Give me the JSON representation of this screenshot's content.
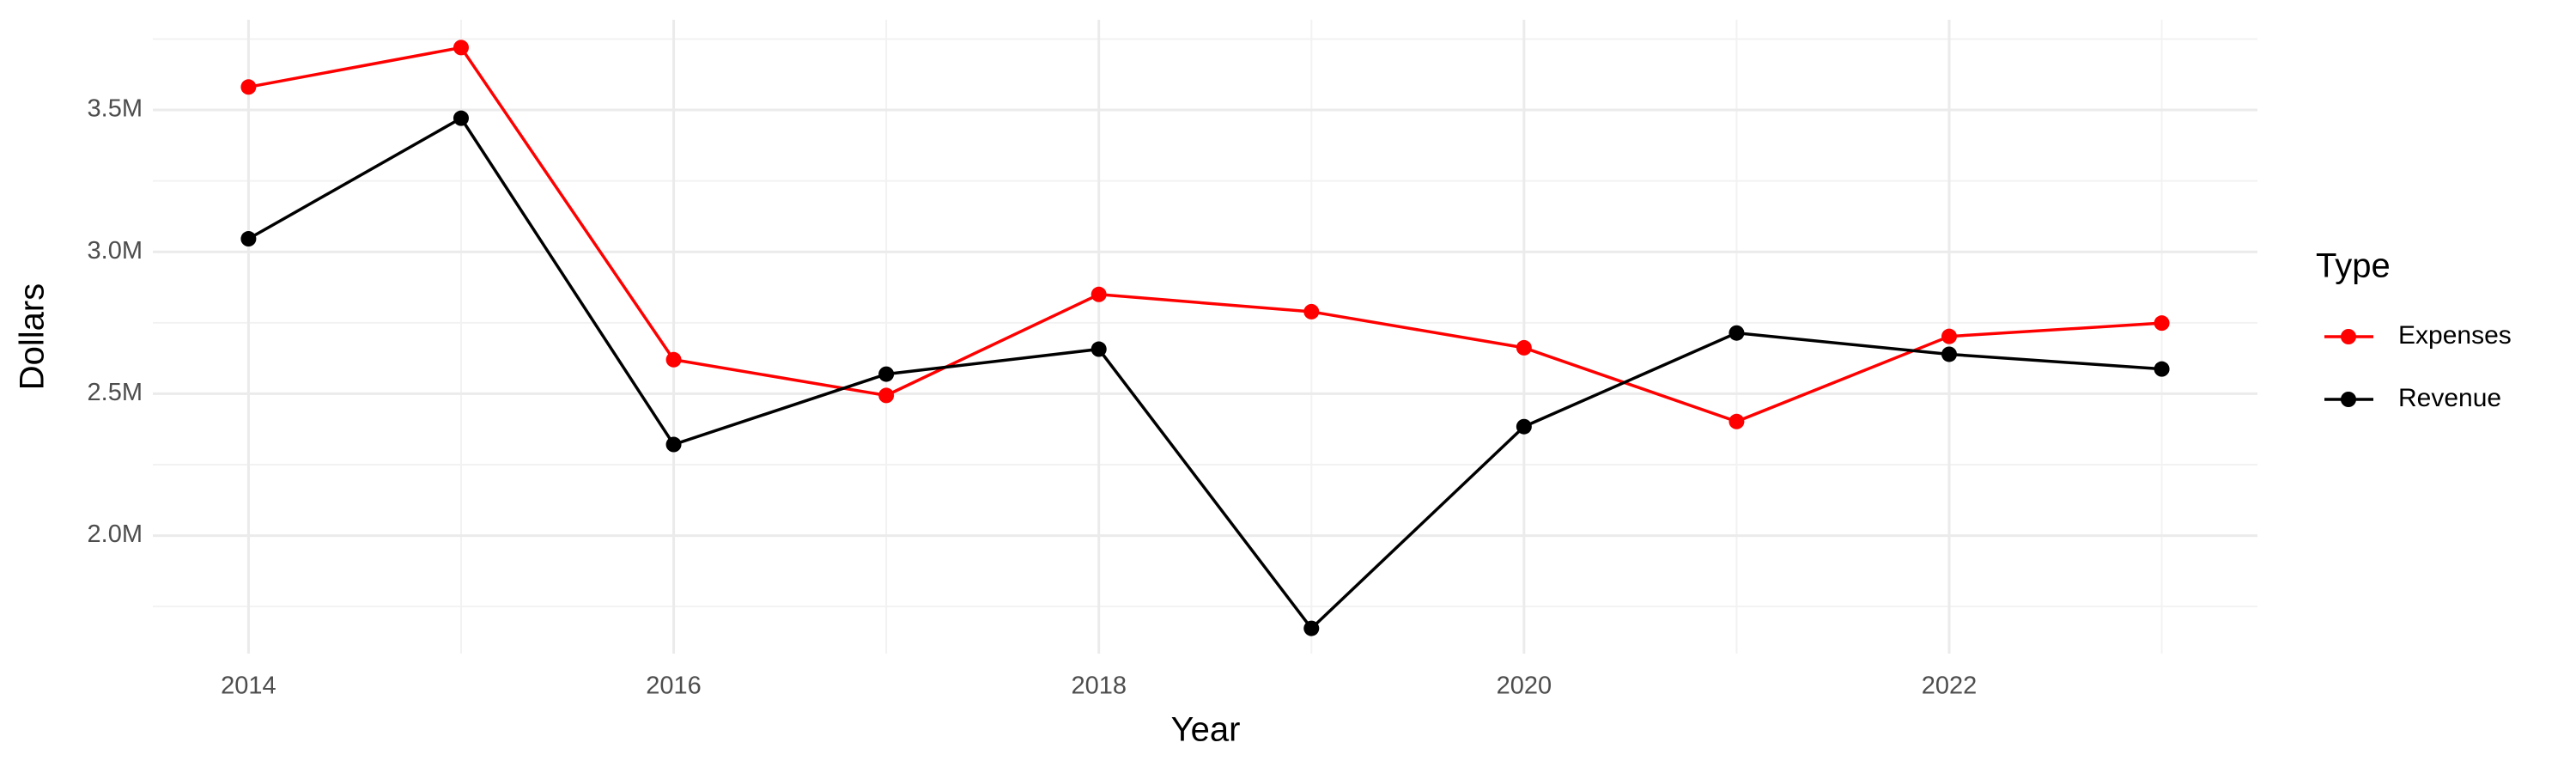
{
  "chart_data": {
    "type": "line",
    "x_label": "Year",
    "y_label": "Dollars",
    "legend_title": "Type",
    "legend": "right",
    "grid": true,
    "x": [
      2014,
      2015,
      2016,
      2017,
      2018,
      2019,
      2020,
      2021,
      2022,
      2023
    ],
    "series": [
      {
        "name": "Expenses",
        "color": "#ff0000",
        "values": [
          3581000,
          3720000,
          2620000,
          2494000,
          2850000,
          2789000,
          2662000,
          2402000,
          2702000,
          2749000
        ]
      },
      {
        "name": "Revenue",
        "color": "#000000",
        "values": [
          3046000,
          3471000,
          2321000,
          2569000,
          2657000,
          1673000,
          2384000,
          2714000,
          2639000,
          2587000
        ]
      }
    ],
    "xlim": [
      2013.55,
      2023.45
    ],
    "xticks": [
      2014,
      2016,
      2018,
      2020,
      2022
    ],
    "ylim": [
      1584000,
      3818000
    ],
    "yticks": [
      {
        "value": 2000000,
        "label": "2.0M"
      },
      {
        "value": 2500000,
        "label": "2.5M"
      },
      {
        "value": 3000000,
        "label": "3.0M"
      },
      {
        "value": 3500000,
        "label": "3.5M"
      }
    ]
  }
}
